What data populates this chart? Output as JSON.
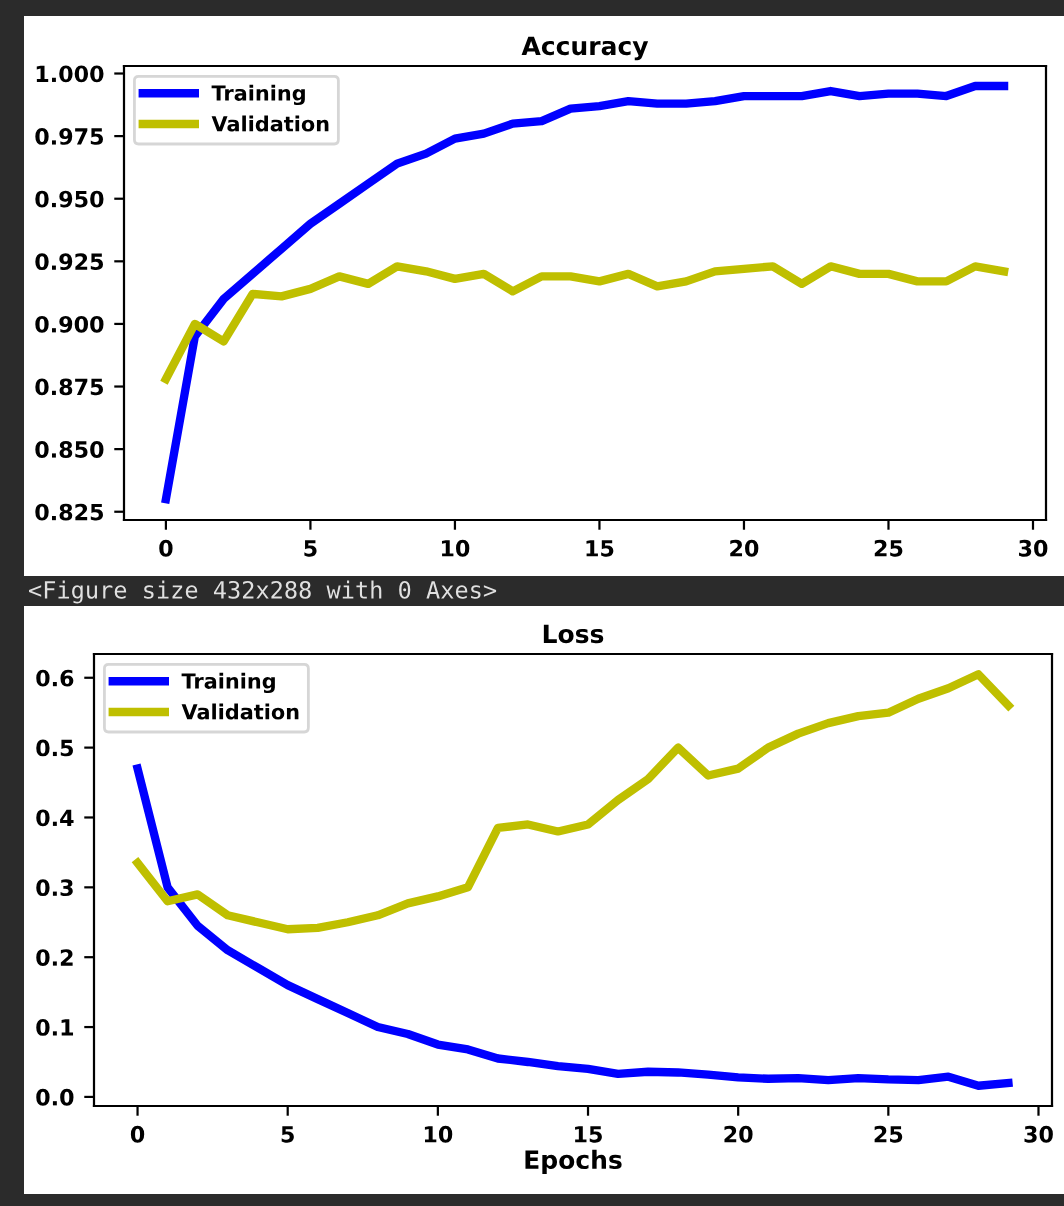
{
  "chart_data": [
    {
      "type": "line",
      "title": "Accuracy",
      "x": [
        0,
        1,
        2,
        3,
        4,
        5,
        6,
        7,
        8,
        9,
        10,
        11,
        12,
        13,
        14,
        15,
        16,
        17,
        18,
        19,
        20,
        21,
        22,
        23,
        24,
        25,
        26,
        27,
        28,
        29
      ],
      "series": [
        {
          "name": "Training",
          "color": "#0000ff",
          "values": [
            0.83,
            0.895,
            0.91,
            0.92,
            0.93,
            0.94,
            0.948,
            0.956,
            0.964,
            0.968,
            0.974,
            0.976,
            0.98,
            0.981,
            0.986,
            0.987,
            0.989,
            0.988,
            0.988,
            0.989,
            0.991,
            0.991,
            0.991,
            0.993,
            0.991,
            0.992,
            0.992,
            0.991,
            0.995,
            0.995
          ]
        },
        {
          "name": "Validation",
          "color": "#bfbf00",
          "values": [
            0.878,
            0.9,
            0.893,
            0.912,
            0.911,
            0.914,
            0.919,
            0.916,
            0.923,
            0.921,
            0.918,
            0.92,
            0.913,
            0.919,
            0.919,
            0.917,
            0.92,
            0.915,
            0.917,
            0.921,
            0.922,
            0.923,
            0.916,
            0.923,
            0.92,
            0.92,
            0.917,
            0.917,
            0.923,
            0.921
          ]
        }
      ],
      "xlim": [
        -1.45,
        30.45
      ],
      "xticks": [
        0,
        5,
        10,
        15,
        20,
        25,
        30
      ],
      "ylim": [
        0.8217,
        1.003
      ],
      "yticks": [
        {
          "value": 0.825,
          "label": "0.825"
        },
        {
          "value": 0.85,
          "label": "0.850"
        },
        {
          "value": 0.875,
          "label": "0.875"
        },
        {
          "value": 0.9,
          "label": "0.900"
        },
        {
          "value": 0.925,
          "label": "0.925"
        },
        {
          "value": 0.95,
          "label": "0.950"
        },
        {
          "value": 0.975,
          "label": "0.975"
        },
        {
          "value": 1.0,
          "label": "1.000"
        }
      ],
      "legend": "top left",
      "grid": false,
      "marker": "none",
      "line_style": "solid",
      "annotations": [
        "<Figure size 432x288 with 0 Axes>"
      ]
    },
    {
      "type": "line",
      "title": "Loss",
      "xlabel": "Epochs",
      "x": [
        0,
        1,
        2,
        3,
        4,
        5,
        6,
        7,
        8,
        9,
        10,
        11,
        12,
        13,
        14,
        15,
        16,
        17,
        18,
        19,
        20,
        21,
        22,
        23,
        24,
        25,
        26,
        27,
        28,
        29
      ],
      "series": [
        {
          "name": "Training",
          "color": "#0000ff",
          "values": [
            0.47,
            0.3,
            0.245,
            0.21,
            0.185,
            0.16,
            0.14,
            0.12,
            0.1,
            0.09,
            0.075,
            0.068,
            0.055,
            0.05,
            0.044,
            0.04,
            0.033,
            0.036,
            0.035,
            0.032,
            0.028,
            0.026,
            0.027,
            0.024,
            0.027,
            0.025,
            0.024,
            0.029,
            0.016,
            0.02
          ]
        },
        {
          "name": "Validation",
          "color": "#bfbf00",
          "values": [
            0.335,
            0.28,
            0.29,
            0.26,
            0.25,
            0.24,
            0.242,
            0.25,
            0.26,
            0.277,
            0.287,
            0.3,
            0.385,
            0.39,
            0.38,
            0.39,
            0.425,
            0.455,
            0.5,
            0.46,
            0.47,
            0.5,
            0.52,
            0.535,
            0.545,
            0.55,
            0.57,
            0.585,
            0.605,
            0.56
          ]
        }
      ],
      "xlim": [
        -1.45,
        30.45
      ],
      "xticks": [
        0,
        5,
        10,
        15,
        20,
        25,
        30
      ],
      "ylim": [
        -0.013,
        0.634
      ],
      "yticks": [
        {
          "value": 0.0,
          "label": "0.0"
        },
        {
          "value": 0.1,
          "label": "0.1"
        },
        {
          "value": 0.2,
          "label": "0.2"
        },
        {
          "value": 0.3,
          "label": "0.3"
        },
        {
          "value": 0.4,
          "label": "0.4"
        },
        {
          "value": 0.5,
          "label": "0.5"
        },
        {
          "value": 0.6,
          "label": "0.6"
        }
      ],
      "legend": "top left",
      "grid": false,
      "marker": "none",
      "line_style": "solid"
    }
  ]
}
